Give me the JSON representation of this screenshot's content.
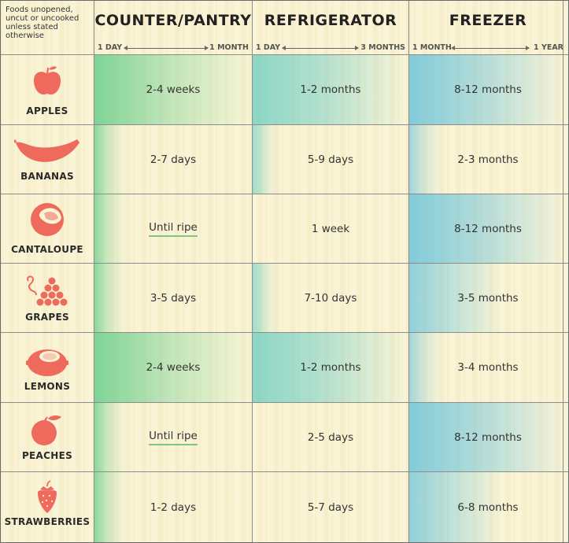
{
  "note": "Foods unopened, uncut or uncooked unless stated otherwise",
  "columns": [
    {
      "title": "COUNTER/PANTRY",
      "scale_low": "1 DAY",
      "scale_high": "1 MONTH"
    },
    {
      "title": "REFRIGERATOR",
      "scale_low": "1 DAY",
      "scale_high": "3 MONTHS"
    },
    {
      "title": "FREEZER",
      "scale_low": "1 MONTH",
      "scale_high": "1 YEAR"
    }
  ],
  "rows": [
    {
      "name": "APPLES",
      "icon": "apple-icon",
      "pantry": "2-4 weeks",
      "fridge": "1-2 months",
      "freezer": "8-12 months"
    },
    {
      "name": "BANANAS",
      "icon": "banana-icon",
      "pantry": "2-7 days",
      "fridge": "5-9 days",
      "freezer": "2-3 months"
    },
    {
      "name": "CANTALOUPE",
      "icon": "cantaloupe-icon",
      "pantry": "Until ripe",
      "fridge": "1 week",
      "freezer": "8-12 months"
    },
    {
      "name": "GRAPES",
      "icon": "grapes-icon",
      "pantry": "3-5 days",
      "fridge": "7-10 days",
      "freezer": "3-5 months"
    },
    {
      "name": "LEMONS",
      "icon": "lemon-icon",
      "pantry": "2-4 weeks",
      "fridge": "1-2 months",
      "freezer": "3-4 months"
    },
    {
      "name": "PEACHES",
      "icon": "peach-icon",
      "pantry": "Until ripe",
      "fridge": "2-5 days",
      "freezer": "8-12 months"
    },
    {
      "name": "STRAWBERRIES",
      "icon": "strawberry-icon",
      "pantry": "1-2 days",
      "fridge": "5-7 days",
      "freezer": "6-8 months"
    }
  ],
  "colors": {
    "icon": "#ee6a5c",
    "green": "#68ce8c",
    "teal": "#50c8be",
    "blue": "#5abedc",
    "underline": "#7fc77e"
  }
}
